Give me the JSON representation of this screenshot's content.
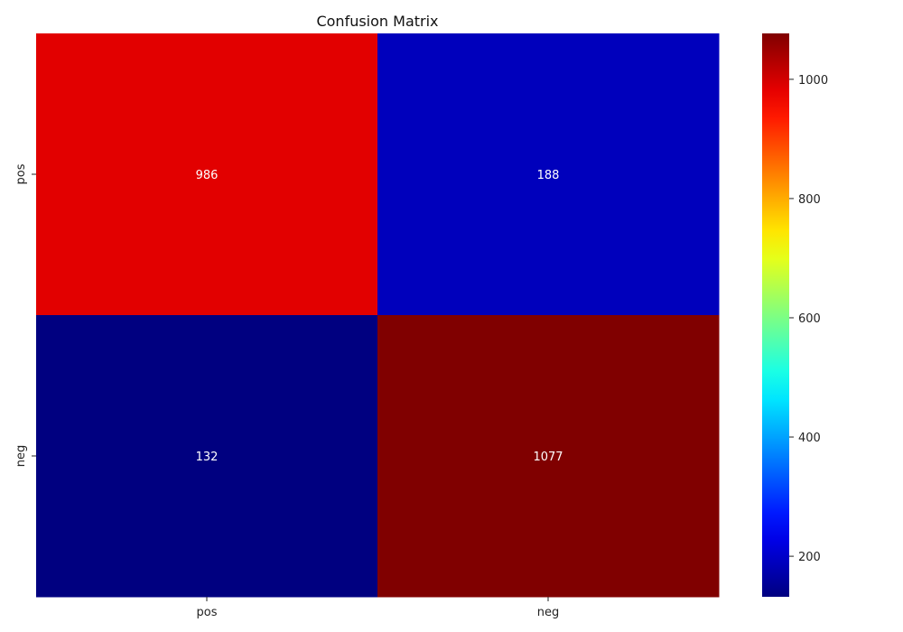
{
  "chart_data": {
    "type": "heatmap",
    "title": "Confusion Matrix",
    "x_categories": [
      "pos",
      "neg"
    ],
    "y_categories": [
      "pos",
      "neg"
    ],
    "values": [
      [
        986,
        188
      ],
      [
        132,
        1077
      ]
    ],
    "colormap": "jet",
    "colorbar": {
      "min": 132,
      "max": 1077,
      "ticks": [
        200,
        400,
        600,
        800,
        1000
      ]
    },
    "cell_label_color": "#ffffff",
    "grid": false
  }
}
